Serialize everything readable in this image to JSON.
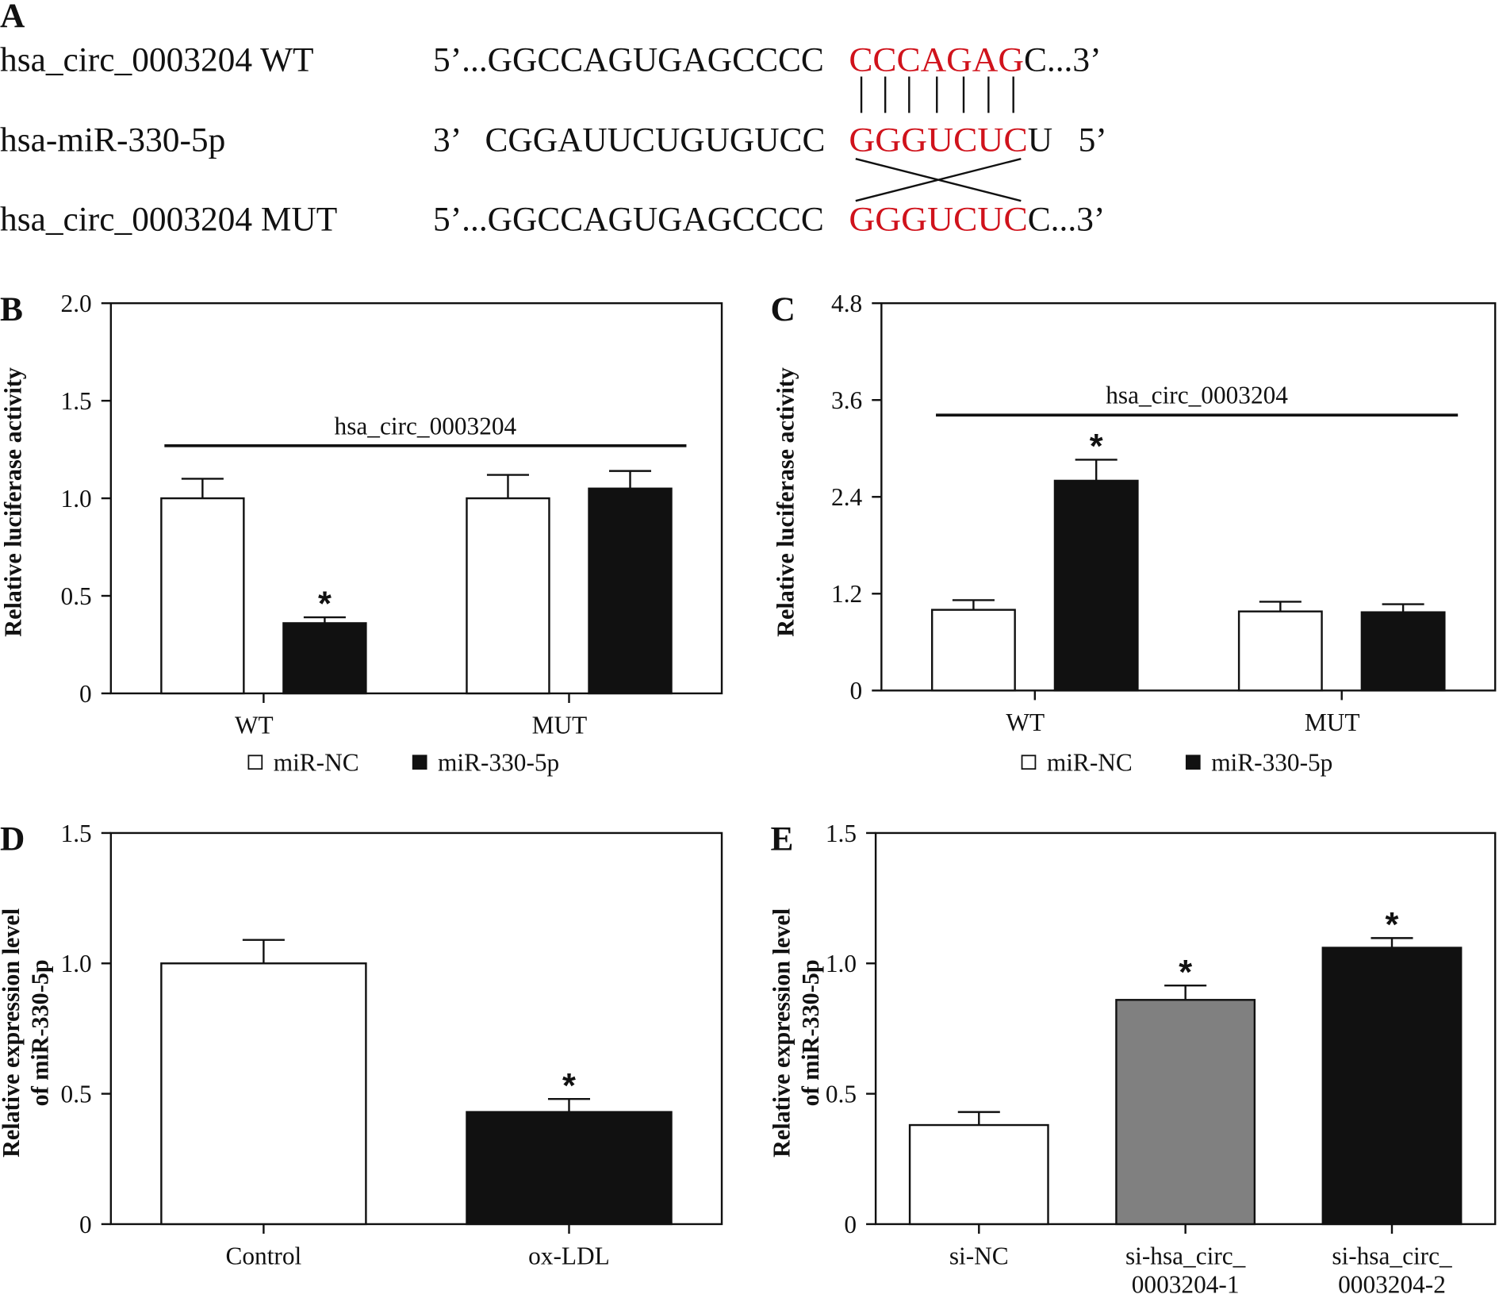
{
  "panel_a": {
    "panel": "A",
    "rows": [
      {
        "name": "hsa_circ_0003204 WT",
        "prefix": "5’...GGCCAGUGAGCCCC",
        "site": "CCCAGAG",
        "suffix": "C...3’"
      },
      {
        "name": "hsa-miR-330-5p",
        "prefix": "3’   CGGAUUCUGUGUCC",
        "site": "GGGUCUC",
        "suffix": "U   5’"
      },
      {
        "name": "hsa_circ_0003204 MUT",
        "prefix": "5’...GGCCAGUGAGCCCC",
        "site": "GGGUCUC",
        "suffix": "C...3’"
      }
    ]
  },
  "chart_data": [
    {
      "type": "bar",
      "panel": "B",
      "y_label": [
        "Relative luciferase activity"
      ],
      "bracket_label": "hsa_circ_0003204",
      "categories": [
        [
          "WT"
        ],
        [
          "MUT"
        ]
      ],
      "series": [
        {
          "name": "miR-NC",
          "color": "#ffffff",
          "values": [
            1.0,
            1.0
          ],
          "errors": [
            0.1,
            0.12
          ],
          "significance": [
            null,
            null
          ]
        },
        {
          "name": "miR-330-5p",
          "color": "#111111",
          "values": [
            0.36,
            1.05
          ],
          "errors": [
            0.03,
            0.09
          ],
          "significance": [
            "*",
            null
          ]
        }
      ],
      "ylim": [
        0,
        2
      ],
      "yticks": [
        0,
        0.5,
        {
          "value": 1,
          "label": "1.0"
        },
        1.5,
        {
          "value": 2,
          "label": "2.0"
        }
      ],
      "legend": "bottom"
    },
    {
      "type": "bar",
      "panel": "C",
      "y_label": [
        "Relative luciferase activity"
      ],
      "bracket_label": "hsa_circ_0003204",
      "categories": [
        [
          "WT"
        ],
        [
          "MUT"
        ]
      ],
      "series": [
        {
          "name": "miR-NC",
          "color": "#ffffff",
          "values": [
            1.0,
            0.98
          ],
          "errors": [
            0.12,
            0.12
          ],
          "significance": [
            null,
            null
          ]
        },
        {
          "name": "miR-330-5p",
          "color": "#111111",
          "values": [
            2.6,
            0.97
          ],
          "errors": [
            0.26,
            0.1
          ],
          "significance": [
            "*",
            null
          ]
        }
      ],
      "ylim": [
        0,
        4.8
      ],
      "yticks": [
        0,
        1.2,
        2.4,
        3.6,
        4.8
      ],
      "legend": "bottom"
    },
    {
      "type": "bar",
      "panel": "D",
      "y_label": [
        "Relative expression level",
        "of miR-330-5p"
      ],
      "categories": [
        [
          "Control"
        ],
        [
          "ox-LDL"
        ]
      ],
      "values": [
        1.0,
        0.43
      ],
      "errors": [
        0.09,
        0.05
      ],
      "colors": [
        "#ffffff",
        "#111111"
      ],
      "significance": [
        null,
        "*"
      ],
      "ylim": [
        0,
        1.5
      ],
      "yticks": [
        0,
        0.5,
        {
          "value": 1,
          "label": "1.0"
        },
        1.5
      ]
    },
    {
      "type": "bar",
      "panel": "E",
      "y_label": [
        "Relative expression level",
        "of miR-330-5p"
      ],
      "categories": [
        [
          "si-NC"
        ],
        [
          "si-hsa_circ_",
          "0003204-1"
        ],
        [
          "si-hsa_circ_",
          "0003204-2"
        ]
      ],
      "values": [
        0.38,
        0.86,
        1.06
      ],
      "errors": [
        0.05,
        0.055,
        0.037
      ],
      "colors": [
        "#ffffff",
        "#808080",
        "#111111"
      ],
      "significance": [
        null,
        "*",
        "*"
      ],
      "ylim": [
        0,
        1.5
      ],
      "yticks": [
        0,
        0.5,
        {
          "value": 1,
          "label": "1.0"
        },
        1.5
      ]
    }
  ]
}
